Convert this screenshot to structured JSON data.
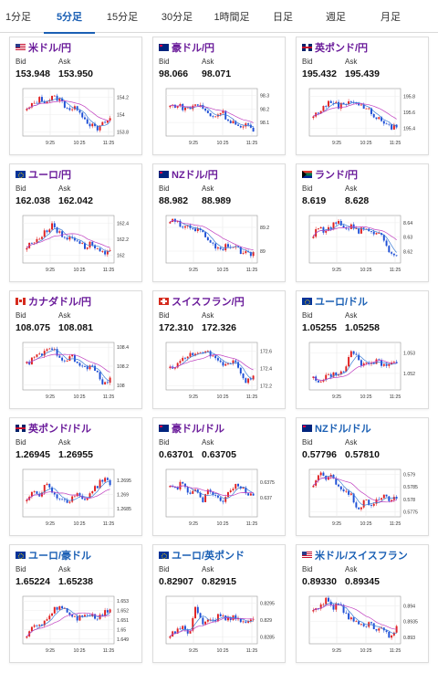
{
  "tabs": [
    {
      "label": "1分足",
      "active": false
    },
    {
      "label": "5分足",
      "active": true
    },
    {
      "label": "15分足",
      "active": false
    },
    {
      "label": "30分足",
      "active": false
    },
    {
      "label": "1時間足",
      "active": false
    },
    {
      "label": "日足",
      "active": false
    },
    {
      "label": "週足",
      "active": false
    },
    {
      "label": "月足",
      "active": false
    }
  ],
  "labels": {
    "bid": "Bid",
    "ask": "Ask"
  },
  "x_ticks": [
    "9:25",
    "10:25",
    "11:25"
  ],
  "colors": {
    "up": "#e02020",
    "down": "#1e4fd6",
    "ma_short": "#3a7bd5",
    "ma_long": "#c040c0",
    "purple": "#6a1b9a",
    "blue": "#1a5fb4"
  },
  "cards": [
    {
      "flag": "us",
      "pair": "米ドル/円",
      "bid": "153.948",
      "ask": "153.950",
      "y_ticks": [
        "154.2",
        "154",
        "153.8"
      ],
      "y_min": 153.75,
      "y_max": 154.3,
      "trend": [
        154.05,
        154.12,
        154.18,
        154.15,
        154.2,
        154.18,
        154.1,
        154.05,
        154.08,
        153.95,
        153.88,
        153.82,
        153.9,
        153.95
      ]
    },
    {
      "flag": "au",
      "pair": "豪ドル/円",
      "bid": "98.066",
      "ask": "98.071",
      "y_ticks": [
        "98.3",
        "98.2",
        "98.1"
      ],
      "y_min": 98.0,
      "y_max": 98.35,
      "trend": [
        98.22,
        98.23,
        98.21,
        98.2,
        98.24,
        98.21,
        98.16,
        98.14,
        98.19,
        98.12,
        98.1,
        98.05,
        98.08,
        98.04
      ]
    },
    {
      "flag": "gb",
      "pair": "英ポンド/円",
      "bid": "195.432",
      "ask": "195.439",
      "y_ticks": [
        "195.8",
        "195.6",
        "195.4"
      ],
      "y_min": 195.3,
      "y_max": 195.9,
      "trend": [
        195.55,
        195.62,
        195.7,
        195.74,
        195.68,
        195.72,
        195.76,
        195.7,
        195.66,
        195.6,
        195.52,
        195.48,
        195.4,
        195.44
      ]
    },
    {
      "flag": "eu",
      "pair": "ユーロ/円",
      "bid": "162.038",
      "ask": "162.042",
      "y_ticks": [
        "162.4",
        "162.2",
        "162"
      ],
      "y_min": 161.9,
      "y_max": 162.5,
      "trend": [
        162.1,
        162.18,
        162.22,
        162.3,
        162.4,
        162.28,
        162.2,
        162.24,
        162.18,
        162.1,
        162.15,
        162.08,
        162.0,
        162.04
      ]
    },
    {
      "flag": "nz",
      "pair": "NZドル/円",
      "bid": "88.982",
      "ask": "88.989",
      "y_ticks": [
        "89.2",
        "89"
      ],
      "y_min": 88.9,
      "y_max": 89.3,
      "trend": [
        89.26,
        89.24,
        89.2,
        89.22,
        89.18,
        89.16,
        89.1,
        89.04,
        89.02,
        89.06,
        89.03,
        89.0,
        88.97,
        88.99
      ]
    },
    {
      "flag": "za",
      "pair": "ランド/円",
      "bid": "8.619",
      "ask": "8.628",
      "y_ticks": [
        "8.64",
        "8.63",
        "8.62"
      ],
      "y_min": 8.612,
      "y_max": 8.645,
      "trend": [
        8.632,
        8.636,
        8.634,
        8.638,
        8.64,
        8.636,
        8.638,
        8.634,
        8.636,
        8.632,
        8.635,
        8.628,
        8.62,
        8.618
      ]
    },
    {
      "flag": "ca",
      "pair": "カナダドル/円",
      "bid": "108.075",
      "ask": "108.081",
      "y_ticks": [
        "108.4",
        "108.2",
        "108"
      ],
      "y_min": 107.95,
      "y_max": 108.45,
      "trend": [
        108.22,
        108.28,
        108.32,
        108.35,
        108.38,
        108.32,
        108.26,
        108.3,
        108.22,
        108.18,
        108.2,
        108.12,
        108.02,
        108.05
      ]
    },
    {
      "flag": "ch",
      "pair": "スイスフラン/円",
      "bid": "172.310",
      "ask": "172.326",
      "y_ticks": [
        "172.6",
        "172.4",
        "172.2"
      ],
      "y_min": 172.15,
      "y_max": 172.7,
      "trend": [
        172.4,
        172.45,
        172.5,
        172.55,
        172.6,
        172.56,
        172.58,
        172.5,
        172.46,
        172.44,
        172.52,
        172.36,
        172.24,
        172.3
      ]
    },
    {
      "flag": "eu",
      "pair": "ユーロ/ドル",
      "bid": "1.05255",
      "ask": "1.05258",
      "y_ticks": [
        "1.053",
        "1.052"
      ],
      "y_min": 1.0512,
      "y_max": 1.0535,
      "trend": [
        1.0518,
        1.0516,
        1.0518,
        1.052,
        1.0519,
        1.0522,
        1.0532,
        1.0526,
        1.0524,
        1.0525,
        1.0526,
        1.0524,
        1.0526,
        1.0525
      ]
    },
    {
      "flag": "gb",
      "pair": "英ポンド/ドル",
      "bid": "1.26945",
      "ask": "1.26955",
      "y_ticks": [
        "1.2695",
        "1.269",
        "1.2685"
      ],
      "y_min": 1.2682,
      "y_max": 1.2699,
      "trend": [
        1.2688,
        1.2692,
        1.269,
        1.2694,
        1.2691,
        1.2689,
        1.2687,
        1.2689,
        1.269,
        1.2688,
        1.2691,
        1.2693,
        1.2696,
        1.2694
      ]
    },
    {
      "flag": "au",
      "pair": "豪ドル/ドル",
      "bid": "0.63701",
      "ask": "0.63705",
      "y_ticks": [
        "0.6375",
        "0.637"
      ],
      "y_min": 0.6364,
      "y_max": 0.6379,
      "trend": [
        0.6374,
        0.6373,
        0.6375,
        0.6371,
        0.6372,
        0.6369,
        0.6373,
        0.6371,
        0.6368,
        0.6372,
        0.6374,
        0.6373,
        0.6372,
        0.637
      ]
    },
    {
      "flag": "nz",
      "pair": "NZドル/ドル",
      "bid": "0.57796",
      "ask": "0.57810",
      "y_ticks": [
        "0.579",
        "0.5785",
        "0.578",
        "0.5775"
      ],
      "y_min": 0.5773,
      "y_max": 0.5792,
      "trend": [
        0.5786,
        0.579,
        0.5788,
        0.5789,
        0.5785,
        0.5783,
        0.5781,
        0.5776,
        0.5779,
        0.5778,
        0.578,
        0.5781,
        0.578,
        0.578
      ]
    },
    {
      "flag": "eu",
      "pair": "ユーロ/豪ドル",
      "bid": "1.65224",
      "ask": "1.65238",
      "y_ticks": [
        "1.653",
        "1.652",
        "1.651",
        "1.65",
        "1.649"
      ],
      "y_min": 1.6485,
      "y_max": 1.6535,
      "trend": [
        1.6495,
        1.6502,
        1.6505,
        1.651,
        1.652,
        1.6525,
        1.6522,
        1.6515,
        1.6512,
        1.6518,
        1.6515,
        1.6512,
        1.6518,
        1.6522
      ]
    },
    {
      "flag": "eu",
      "pair": "ユーロ/英ポンド",
      "bid": "0.82907",
      "ask": "0.82915",
      "y_ticks": [
        "0.8295",
        "0.829",
        "0.8285"
      ],
      "y_min": 0.8283,
      "y_max": 0.8297,
      "trend": [
        0.8286,
        0.8287,
        0.8288,
        0.8286,
        0.8294,
        0.8289,
        0.8291,
        0.829,
        0.8292,
        0.829,
        0.8291,
        0.8289,
        0.829,
        0.8291
      ]
    },
    {
      "flag": "us",
      "pair": "米ドル/スイスフラン",
      "bid": "0.89330",
      "ask": "0.89345",
      "y_ticks": [
        "0.894",
        "0.8935",
        "0.893"
      ],
      "y_min": 0.8928,
      "y_max": 0.8943,
      "trend": [
        0.8938,
        0.894,
        0.8942,
        0.8939,
        0.8941,
        0.8937,
        0.8936,
        0.8935,
        0.8934,
        0.8934,
        0.8932,
        0.8933,
        0.893,
        0.8933
      ]
    }
  ]
}
